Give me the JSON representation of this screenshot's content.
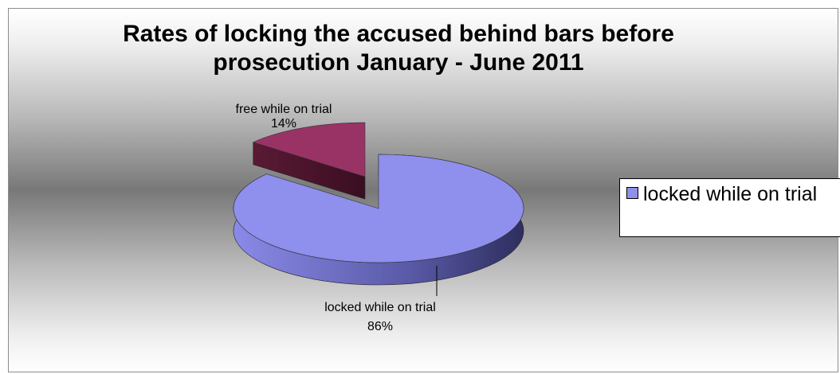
{
  "chart_data": {
    "type": "pie",
    "title": "Rates of locking the accused behind bars before prosecution January - June 2011",
    "title_lines": [
      "Rates of locking the accused behind bars before",
      "prosecution January - June 2011"
    ],
    "slices": [
      {
        "name": "locked while on trial",
        "value": 86,
        "label": "86%",
        "color": "#8f8fee",
        "exploded": false
      },
      {
        "name": "free while on trial",
        "value": 14,
        "label": "14%",
        "color": "#993366",
        "exploded": true
      }
    ],
    "legend": {
      "position": "right",
      "entries": [
        {
          "label": "locked while on trial",
          "color": "#8f8fee"
        }
      ]
    },
    "three_d": true,
    "grid": false
  }
}
